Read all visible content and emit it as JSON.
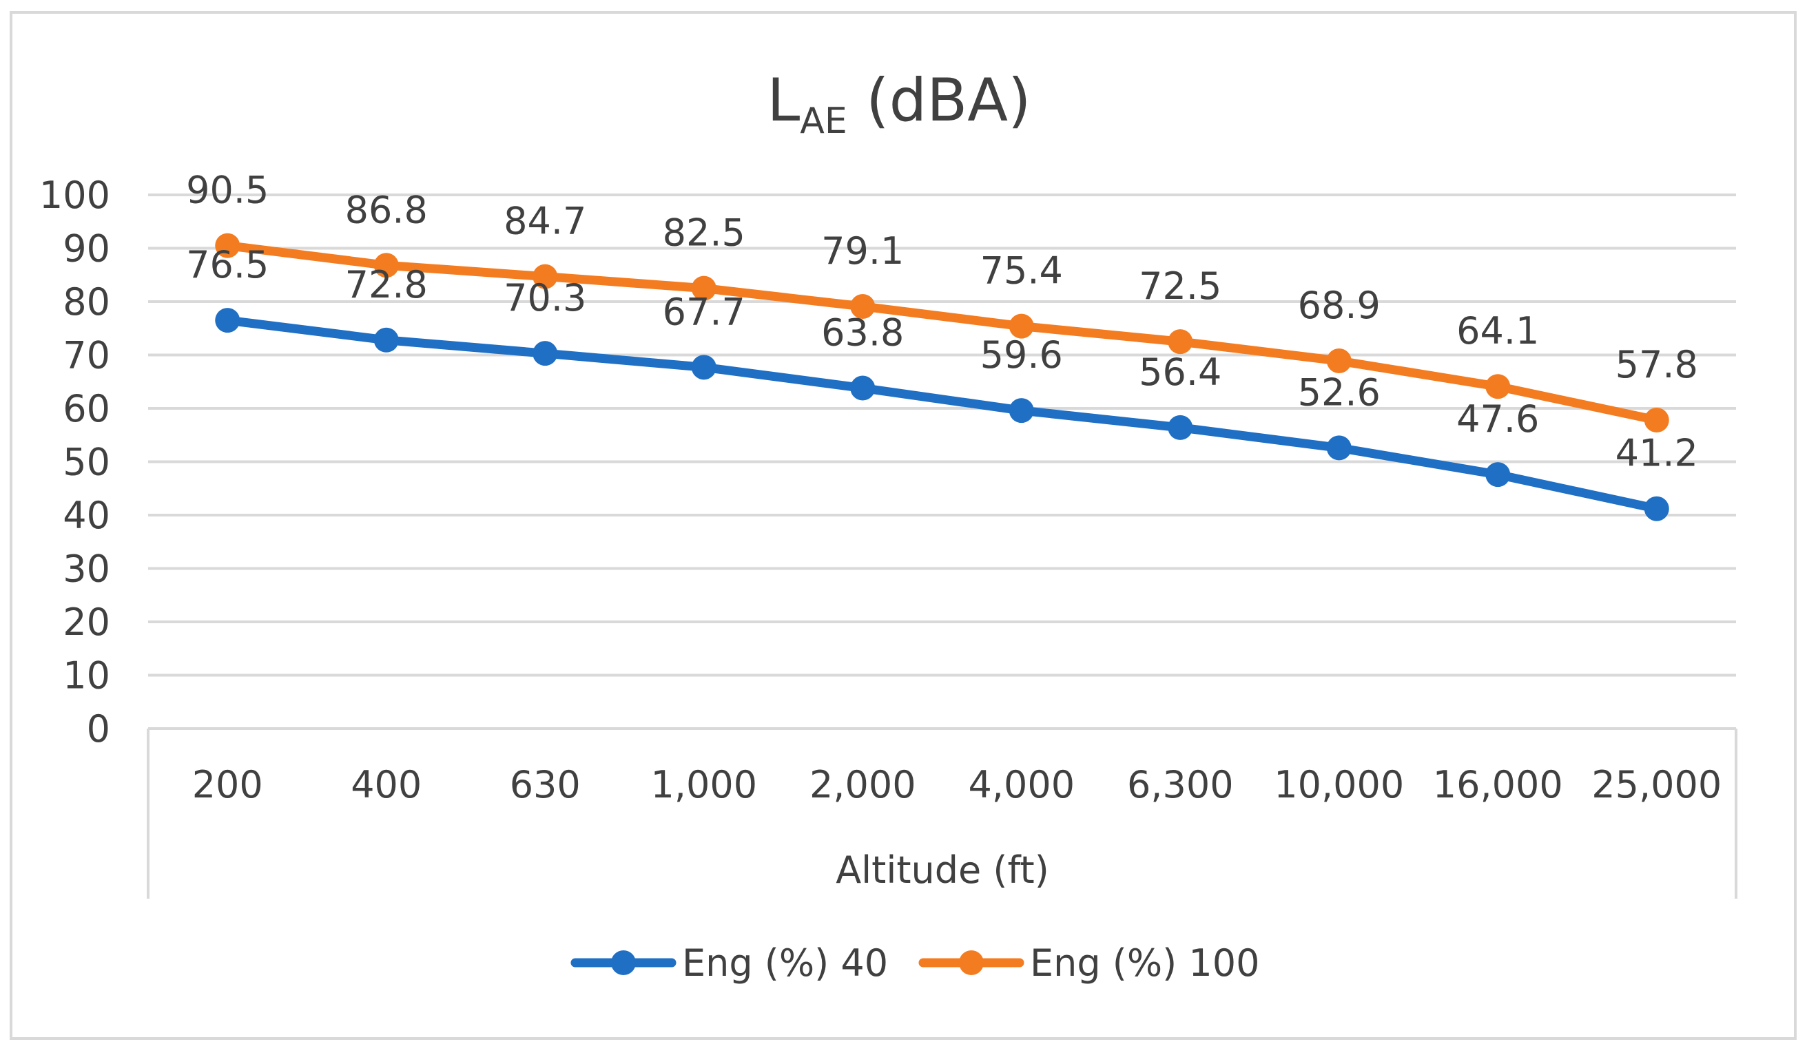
{
  "chart_data": {
    "type": "line",
    "title": {
      "main": "L",
      "subscript": "AE",
      "suffix": " (dBA)"
    },
    "xlabel": "Altitude (ft)",
    "ylabel": "",
    "categories": [
      "200",
      "400",
      "630",
      "1,000",
      "2,000",
      "4,000",
      "6,300",
      "10,000",
      "16,000",
      "25,000"
    ],
    "yticks": [
      0,
      10,
      20,
      30,
      40,
      50,
      60,
      70,
      80,
      90,
      100
    ],
    "ylim": [
      0,
      100
    ],
    "grid": true,
    "legend_position": "bottom",
    "series": [
      {
        "name": "Eng (%) 40",
        "color": "#1F6FC5",
        "values": [
          76.5,
          72.8,
          70.3,
          67.7,
          63.8,
          59.6,
          56.4,
          52.6,
          47.6,
          41.2
        ]
      },
      {
        "name": "Eng (%) 100",
        "color": "#F47C20",
        "values": [
          90.5,
          86.8,
          84.7,
          82.5,
          79.1,
          75.4,
          72.5,
          68.9,
          64.1,
          57.8
        ]
      }
    ]
  }
}
